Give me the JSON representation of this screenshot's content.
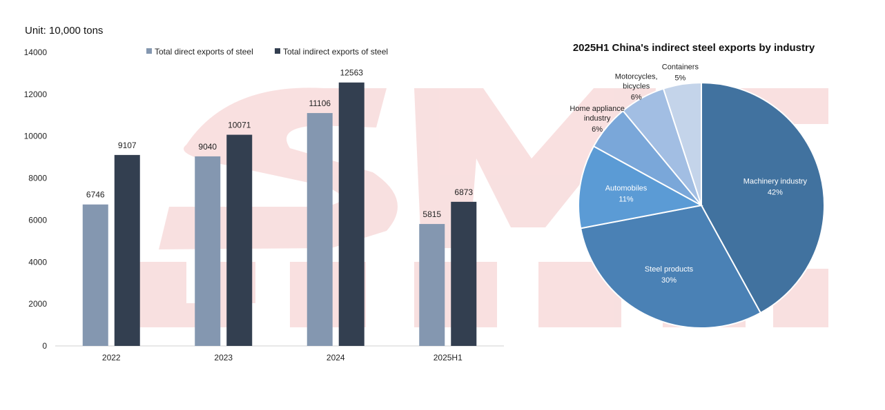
{
  "unit_label": "Unit: 10,000 tons",
  "colors": {
    "direct": "#8497b0",
    "indirect": "#333f50",
    "watermark": "#f4c7c7",
    "pie": [
      "#41729f",
      "#4a81b5",
      "#5b9bd5",
      "#7aa7d9",
      "#a2bee3",
      "#c4d4ea"
    ]
  },
  "chart_data": [
    {
      "type": "bar",
      "categories": [
        "2022",
        "2023",
        "2024",
        "2025H1"
      ],
      "series": [
        {
          "name": "Total direct exports of steel",
          "values": [
            6746,
            9040,
            11106,
            5815
          ]
        },
        {
          "name": "Total indirect exports of steel",
          "values": [
            9107,
            10071,
            12563,
            6873
          ]
        }
      ],
      "ylim": [
        0,
        14000
      ],
      "yticks": [
        0,
        2000,
        4000,
        6000,
        8000,
        10000,
        12000,
        14000
      ],
      "grid": false,
      "legend_position": "top",
      "data_labels": true
    },
    {
      "type": "pie",
      "title": "2025H1 China's indirect steel exports by industry",
      "slices": [
        {
          "label": "Machinery industry",
          "value": 42,
          "value_label": "42%"
        },
        {
          "label": "Steel products",
          "value": 30,
          "value_label": "30%"
        },
        {
          "label": "Automobiles",
          "value": 11,
          "value_label": "11%"
        },
        {
          "label": "Home appliance industry",
          "value": 6,
          "value_label": "6%"
        },
        {
          "label": "Motorcycles, bicycles",
          "value": 6,
          "value_label": "6%"
        },
        {
          "label": "Containers",
          "value": 5,
          "value_label": "5%"
        }
      ]
    }
  ]
}
